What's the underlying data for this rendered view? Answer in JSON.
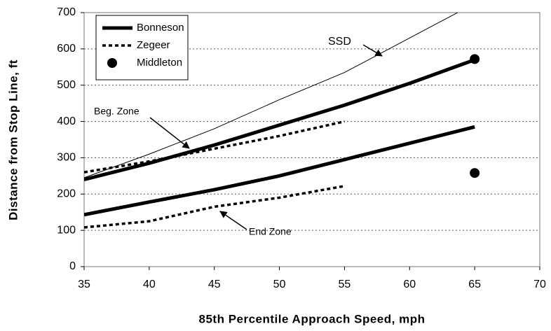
{
  "chart_data": {
    "type": "line",
    "xlabel": "85th Percentile Approach Speed, mph",
    "ylabel": "Distance from Stop Line, ft",
    "xlim": [
      35,
      70
    ],
    "xticks": [
      35,
      40,
      45,
      50,
      55,
      60,
      65,
      70
    ],
    "ylim": [
      0,
      700
    ],
    "yticks": [
      0,
      100,
      200,
      300,
      400,
      500,
      600,
      700
    ],
    "grid": true,
    "legend": "upper left",
    "series": [
      {
        "name": "Bonneson",
        "color": "#000000",
        "style": "solid",
        "mark": "line",
        "x": [
          35,
          40,
          45,
          50,
          55,
          60,
          65
        ],
        "lines": [
          [
            240,
            285,
            335,
            390,
            445,
            505,
            570
          ],
          [
            143,
            178,
            212,
            250,
            295,
            340,
            385
          ]
        ]
      },
      {
        "name": "Zegeer",
        "color": "#000000",
        "style": "dotted",
        "mark": "line",
        "x": [
          35,
          40,
          45,
          50,
          55
        ],
        "lines": [
          [
            260,
            290,
            325,
            360,
            400
          ],
          [
            108,
            125,
            165,
            190,
            222
          ]
        ]
      },
      {
        "name": "Middleton",
        "color": "#000000",
        "style": "solid",
        "mark": "marker",
        "x": [
          65,
          65
        ],
        "lines": [
          [
            572,
            258
          ]
        ]
      }
    ],
    "reference": {
      "x": [
        35,
        40,
        45,
        50,
        55,
        60,
        65
      ],
      "values": [
        245,
        310,
        380,
        460,
        535,
        630,
        725
      ],
      "color": "#000000"
    },
    "annotations": [
      "SSD",
      "Beg. Zone",
      "End Zone"
    ]
  }
}
